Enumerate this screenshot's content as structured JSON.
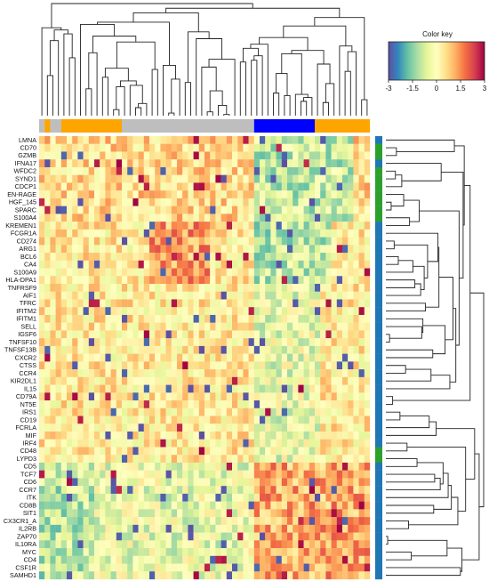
{
  "chart_data": {
    "type": "heatmap",
    "title": "",
    "xlabel": "",
    "ylabel": "",
    "color_key": {
      "title": "Color key",
      "range": [
        -3,
        3
      ],
      "ticks": [
        "-3",
        "-1.5",
        "0",
        "1.5",
        "3"
      ],
      "palette": [
        "#5e4fa2",
        "#3288bd",
        "#66c2a5",
        "#abdda4",
        "#e6f598",
        "#ffffbf",
        "#fee08b",
        "#fdae61",
        "#f46d43",
        "#d53e4f",
        "#9e0142"
      ]
    },
    "dendrograms": {
      "rows": true,
      "columns": true
    },
    "n_columns": 60,
    "column_groups": [
      {
        "color": "#bebebe",
        "count": 1
      },
      {
        "color": "#ffa500",
        "count": 1
      },
      {
        "color": "#bebebe",
        "count": 2
      },
      {
        "color": "#ffa500",
        "count": 11
      },
      {
        "color": "#bebebe",
        "count": 24
      },
      {
        "color": "#0000ff",
        "count": 11
      },
      {
        "color": "#ffa500",
        "count": 10
      }
    ],
    "rows": [
      {
        "gene": "LMNA",
        "group_color": "#1f77b4"
      },
      {
        "gene": "CD70",
        "group_color": "#2ca02c"
      },
      {
        "gene": "GZMB",
        "group_color": "#2ca02c"
      },
      {
        "gene": "IFNA17",
        "group_color": "#1f77b4"
      },
      {
        "gene": "WFDC2",
        "group_color": "#2ca02c"
      },
      {
        "gene": "SYND1",
        "group_color": "#2ca02c"
      },
      {
        "gene": "CDCP1",
        "group_color": "#2ca02c"
      },
      {
        "gene": "EN-RAGE",
        "group_color": "#2ca02c"
      },
      {
        "gene": "HGF_145",
        "group_color": "#2ca02c"
      },
      {
        "gene": "SPARC",
        "group_color": "#2ca02c"
      },
      {
        "gene": "S100A4",
        "group_color": "#2ca02c"
      },
      {
        "gene": "KREMEN1",
        "group_color": "#1f77b4"
      },
      {
        "gene": "FCGR1A",
        "group_color": "#1f77b4"
      },
      {
        "gene": "CD274",
        "group_color": "#1f77b4"
      },
      {
        "gene": "ARG1",
        "group_color": "#1f77b4"
      },
      {
        "gene": "BCL6",
        "group_color": "#1f77b4"
      },
      {
        "gene": "CA4",
        "group_color": "#1f77b4"
      },
      {
        "gene": "S100A9",
        "group_color": "#1f77b4"
      },
      {
        "gene": "HLA-DPA1",
        "group_color": "#1f77b4"
      },
      {
        "gene": "TNFRSF9",
        "group_color": "#1f77b4"
      },
      {
        "gene": "AIF1",
        "group_color": "#1f77b4"
      },
      {
        "gene": "TFRC",
        "group_color": "#1f77b4"
      },
      {
        "gene": "IFITM2",
        "group_color": "#1f77b4"
      },
      {
        "gene": "IFITM1",
        "group_color": "#1f77b4"
      },
      {
        "gene": "SELL",
        "group_color": "#1f77b4"
      },
      {
        "gene": "IGSF6",
        "group_color": "#1f77b4"
      },
      {
        "gene": "TNFSF10",
        "group_color": "#1f77b4"
      },
      {
        "gene": "TNFSF13B",
        "group_color": "#1f77b4"
      },
      {
        "gene": "CXCR2",
        "group_color": "#1f77b4"
      },
      {
        "gene": "CTSS",
        "group_color": "#1f77b4"
      },
      {
        "gene": "CCR4",
        "group_color": "#1f77b4"
      },
      {
        "gene": "KIR2DL1",
        "group_color": "#1f77b4"
      },
      {
        "gene": "IL15",
        "group_color": "#1f77b4"
      },
      {
        "gene": "CD79A",
        "group_color": "#1f77b4"
      },
      {
        "gene": "NT5E",
        "group_color": "#1f77b4"
      },
      {
        "gene": "IRS1",
        "group_color": "#1f77b4"
      },
      {
        "gene": "CD19",
        "group_color": "#1f77b4"
      },
      {
        "gene": "FCRLA",
        "group_color": "#1f77b4"
      },
      {
        "gene": "MIF",
        "group_color": "#1f77b4"
      },
      {
        "gene": "IRF4",
        "group_color": "#1f77b4"
      },
      {
        "gene": "CD48",
        "group_color": "#2ca02c"
      },
      {
        "gene": "LYPD3",
        "group_color": "#2ca02c"
      },
      {
        "gene": "CD5",
        "group_color": "#1f77b4"
      },
      {
        "gene": "TCF7",
        "group_color": "#1f77b4"
      },
      {
        "gene": "CD6",
        "group_color": "#1f77b4"
      },
      {
        "gene": "CCR7",
        "group_color": "#1f77b4"
      },
      {
        "gene": "ITK",
        "group_color": "#1f77b4"
      },
      {
        "gene": "CD8B",
        "group_color": "#1f77b4"
      },
      {
        "gene": "SIT1",
        "group_color": "#1f77b4"
      },
      {
        "gene": "CX3CR1_A",
        "group_color": "#1f77b4"
      },
      {
        "gene": "IL2RB",
        "group_color": "#1f77b4"
      },
      {
        "gene": "ZAP70",
        "group_color": "#1f77b4"
      },
      {
        "gene": "IL10RA",
        "group_color": "#1f77b4"
      },
      {
        "gene": "MYC",
        "group_color": "#1f77b4"
      },
      {
        "gene": "CD4",
        "group_color": "#1f77b4"
      },
      {
        "gene": "CSF1R",
        "group_color": "#1f77b4"
      },
      {
        "gene": "SAMHD1",
        "group_color": "#1f77b4"
      }
    ]
  }
}
